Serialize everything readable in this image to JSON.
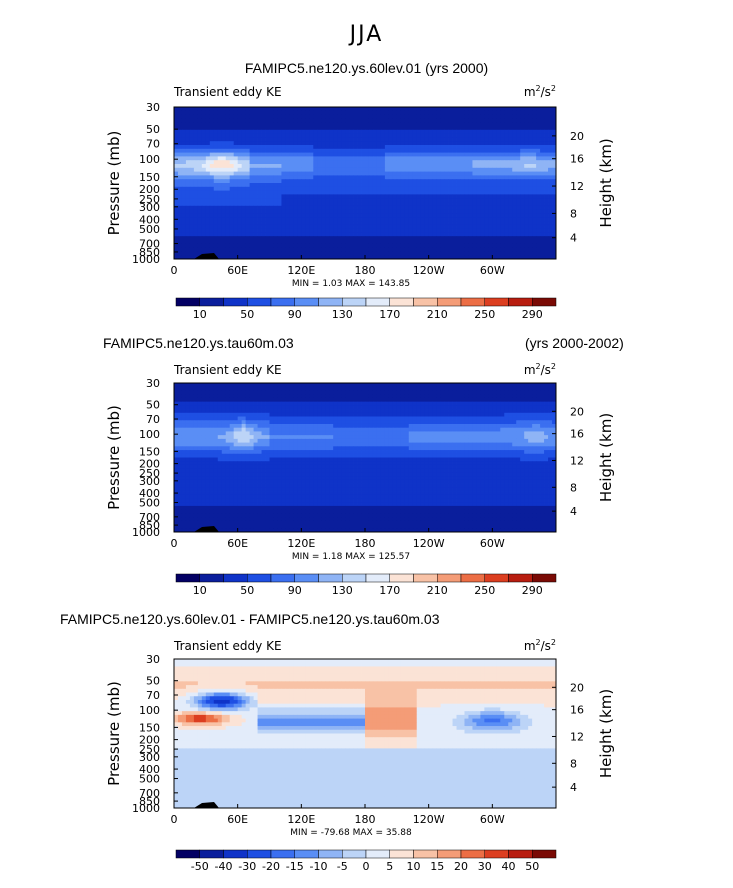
{
  "page": {
    "title": "JJA"
  },
  "chart_data": [
    {
      "type": "heatmap",
      "title": "FAMIPC5.ne120.ys.60lev.01 (yrs 2000)",
      "title_right": "",
      "variable": "Transient eddy KE",
      "units": "m²/s²",
      "units_base": "m",
      "units_exp": "2",
      "units_den": "/s",
      "units_den_exp": "2",
      "min_max": "MIN =    1.03   MAX = 143.85",
      "ylabel": "Pressure (mb)",
      "y2label": "Height (km)",
      "xticks": [
        "0",
        "60E",
        "120E",
        "180",
        "120W",
        "60W"
      ],
      "yticks": [
        "30",
        "50",
        "70",
        "100",
        "150",
        "200",
        "250",
        "300",
        "400",
        "500",
        "700",
        "850",
        "1000"
      ],
      "y2ticks": [
        "20",
        "16",
        "12",
        "8",
        "4"
      ],
      "colorbar_labels": [
        "10",
        "50",
        "90",
        "130",
        "170",
        "210",
        "250",
        "290"
      ],
      "colors": [
        "#030064",
        "#0a1e9c",
        "#0f33c8",
        "#1e4fe3",
        "#3b6ff0",
        "#5a8ef5",
        "#8fb4f5",
        "#bcd4f7",
        "#e3ecfa",
        "#fbe3d6",
        "#f8c2a6",
        "#f49c77",
        "#ec6e45",
        "#dc3e20",
        "#b81d10",
        "#7a0a05"
      ]
    },
    {
      "type": "heatmap",
      "title": "FAMIPC5.ne120.ys.tau60m.03",
      "title_right": "(yrs 2000-2002)",
      "variable": "Transient eddy KE",
      "units": "m²/s²",
      "units_base": "m",
      "units_exp": "2",
      "units_den": "/s",
      "units_den_exp": "2",
      "min_max": "MIN =    1.18   MAX = 125.57",
      "ylabel": "Pressure (mb)",
      "y2label": "Height (km)",
      "xticks": [
        "0",
        "60E",
        "120E",
        "180",
        "120W",
        "60W"
      ],
      "yticks": [
        "30",
        "50",
        "70",
        "100",
        "150",
        "200",
        "250",
        "300",
        "400",
        "500",
        "700",
        "850",
        "1000"
      ],
      "y2ticks": [
        "20",
        "16",
        "12",
        "8",
        "4"
      ],
      "colorbar_labels": [
        "10",
        "50",
        "90",
        "130",
        "170",
        "210",
        "250",
        "290"
      ],
      "colors": [
        "#030064",
        "#0a1e9c",
        "#0f33c8",
        "#1e4fe3",
        "#3b6ff0",
        "#5a8ef5",
        "#8fb4f5",
        "#bcd4f7",
        "#e3ecfa",
        "#fbe3d6",
        "#f8c2a6",
        "#f49c77",
        "#ec6e45",
        "#dc3e20",
        "#b81d10",
        "#7a0a05"
      ]
    },
    {
      "type": "heatmap",
      "title": "FAMIPC5.ne120.ys.60lev.01 - FAMIPC5.ne120.ys.tau60m.03",
      "title_right": "",
      "variable": "Transient eddy KE",
      "units": "m²/s²",
      "units_base": "m",
      "units_exp": "2",
      "units_den": "/s",
      "units_den_exp": "2",
      "min_max": "MIN = -79.68   MAX =  35.88",
      "ylabel": "Pressure (mb)",
      "y2label": "Height (km)",
      "xticks": [
        "0",
        "60E",
        "120E",
        "180",
        "120W",
        "60W"
      ],
      "yticks": [
        "30",
        "50",
        "70",
        "100",
        "150",
        "200",
        "250",
        "300",
        "400",
        "500",
        "700",
        "850",
        "1000"
      ],
      "y2ticks": [
        "20",
        "16",
        "12",
        "8",
        "4"
      ],
      "colorbar_labels": [
        "-50",
        "-40",
        "-30",
        "-20",
        "-15",
        "-10",
        "-5",
        "0",
        "5",
        "10",
        "15",
        "20",
        "30",
        "40",
        "50"
      ],
      "colors": [
        "#030064",
        "#0a1e9c",
        "#0f33c8",
        "#1e4fe3",
        "#3b6ff0",
        "#5a8ef5",
        "#8fb4f5",
        "#bcd4f7",
        "#e3ecfa",
        "#fbe3d6",
        "#f8c2a6",
        "#f49c77",
        "#ec6e45",
        "#dc3e20",
        "#b81d10",
        "#7a0a05"
      ]
    }
  ]
}
